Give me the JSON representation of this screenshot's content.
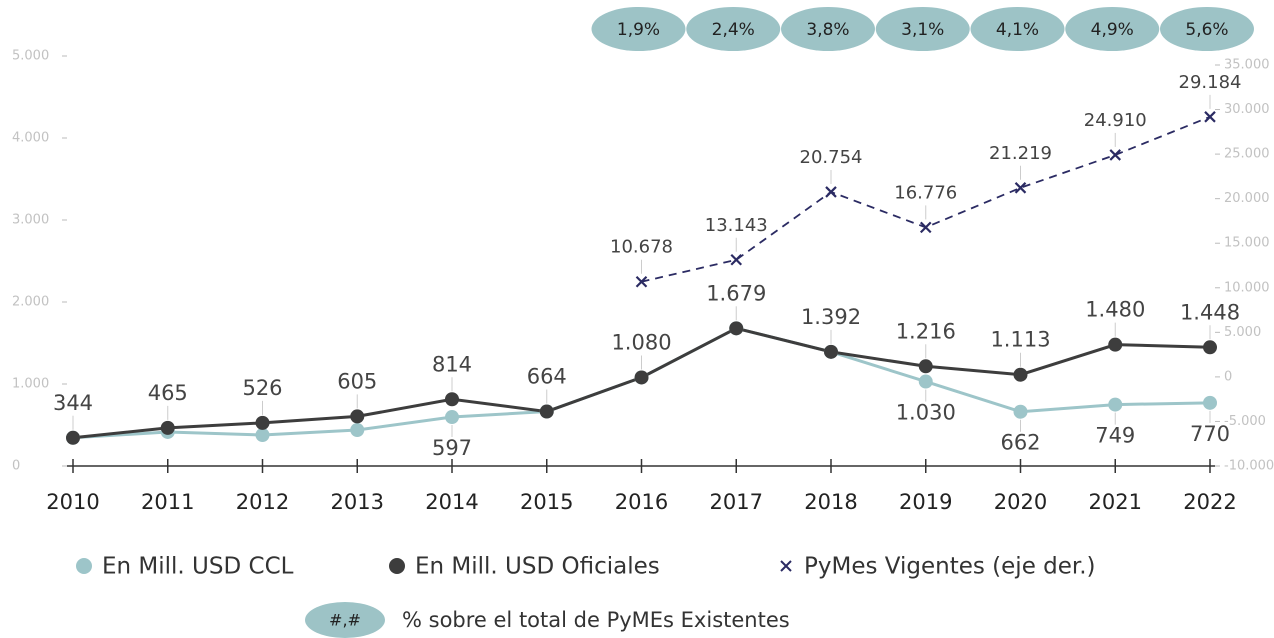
{
  "chart_data": {
    "type": "line",
    "categories": [
      "2010",
      "2011",
      "2012",
      "2013",
      "2014",
      "2015",
      "2016",
      "2017",
      "2018",
      "2019",
      "2020",
      "2021",
      "2022"
    ],
    "series": [
      {
        "name": "En Mill. USD CCL",
        "color": "#9dc5c9",
        "marker": "circle",
        "values": [
          344,
          415,
          378,
          439,
          597,
          664,
          1080,
          1679,
          1392,
          1030,
          662,
          749,
          770
        ],
        "value_labels": [
          null,
          null,
          null,
          null,
          "597",
          null,
          null,
          null,
          null,
          "1.030",
          "662",
          "749",
          "770"
        ]
      },
      {
        "name": "En Mill. USD Oficiales",
        "color": "#3d3d3d",
        "marker": "circle",
        "values": [
          344,
          465,
          526,
          605,
          814,
          664,
          1080,
          1679,
          1392,
          1216,
          1113,
          1480,
          1448
        ],
        "value_labels": [
          "344",
          "465",
          "526",
          "605",
          "814",
          "664",
          "1.080",
          "1.679",
          "1.392",
          "1.216",
          "1.113",
          "1.480",
          "1.448"
        ]
      },
      {
        "name": "PyMes Vigentes (eje der.)",
        "color": "#2b2b63",
        "marker": "x",
        "dashed": true,
        "axis": "y2",
        "values": [
          null,
          null,
          null,
          null,
          null,
          null,
          10678,
          13143,
          20754,
          16776,
          21219,
          24910,
          29184
        ],
        "value_labels": [
          null,
          null,
          null,
          null,
          null,
          null,
          "10.678",
          "13.143",
          "20.754",
          "16.776",
          "21.219",
          "24.910",
          "29.184"
        ]
      }
    ],
    "shares": {
      "color": "#9dc3c6",
      "values": [
        null,
        null,
        null,
        null,
        null,
        null,
        1.9,
        2.4,
        3.8,
        3.1,
        4.1,
        4.9,
        5.6
      ],
      "value_labels": [
        null,
        null,
        null,
        null,
        null,
        null,
        "1,9%",
        "2,4%",
        "3,8%",
        "3,1%",
        "4,1%",
        "4,9%",
        "5,6%"
      ],
      "legend_symbol": "#,#",
      "legend_label": "% sobre el total de PyMEs Existentes"
    },
    "ylim": [
      0,
      5000
    ],
    "yticks": [
      0,
      {
        "value": 1000,
        "label": "1.000"
      },
      {
        "value": 2000,
        "label": "2.000"
      },
      {
        "value": 3000,
        "label": "3.000"
      },
      {
        "value": 4000,
        "label": "4.000"
      },
      {
        "value": 5000,
        "label": "5.000"
      }
    ],
    "y2lim": [
      -10000,
      35000
    ],
    "y2ticks": [
      {
        "value": -10000,
        "label": "-10.000"
      },
      {
        "value": -5000,
        "label": "-5.000"
      },
      0,
      {
        "value": 5000,
        "label": "5.000"
      },
      {
        "value": 10000,
        "label": "10.000"
      },
      {
        "value": 15000,
        "label": "15.000"
      },
      {
        "value": 20000,
        "label": "20.000"
      },
      {
        "value": 25000,
        "label": "25.000"
      },
      {
        "value": 30000,
        "label": "30.000"
      },
      {
        "value": 35000,
        "label": "35.000"
      }
    ],
    "grid": false
  }
}
